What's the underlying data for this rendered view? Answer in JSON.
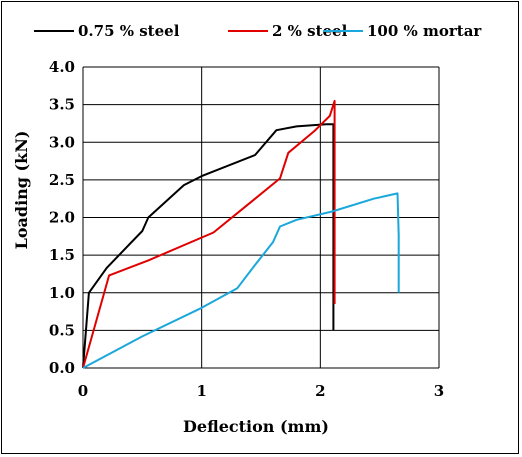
{
  "chart_data": {
    "type": "line",
    "title": "",
    "xlabel": "Deflection (mm)",
    "ylabel": "Loading (kN)",
    "xlim": [
      0,
      3
    ],
    "ylim": [
      0,
      4
    ],
    "xticks": [
      "0",
      "1",
      "2",
      "3"
    ],
    "yticks": [
      "0.0",
      "0.5",
      "1.0",
      "1.5",
      "2.0",
      "2.5",
      "3.0",
      "3.5",
      "4.0"
    ],
    "grid": true,
    "legend_position": "top",
    "series": [
      {
        "name": "0.75 % steel",
        "color": "#000000",
        "x": [
          0.0,
          0.05,
          0.2,
          0.5,
          0.55,
          0.85,
          1.0,
          1.45,
          1.63,
          1.8,
          2.05,
          2.11,
          2.11,
          2.11
        ],
        "y": [
          0.0,
          1.0,
          1.33,
          1.82,
          2.0,
          2.43,
          2.55,
          2.83,
          3.16,
          3.21,
          3.24,
          3.24,
          1.75,
          0.5
        ]
      },
      {
        "name": "2 % steel",
        "color": "#e00000",
        "x": [
          0.0,
          0.22,
          0.55,
          1.1,
          1.45,
          1.66,
          1.73,
          1.95,
          2.08,
          2.12,
          2.12
        ],
        "y": [
          0.0,
          1.23,
          1.43,
          1.8,
          2.25,
          2.52,
          2.86,
          3.15,
          3.35,
          3.55,
          0.85
        ]
      },
      {
        "name": "100 % mortar",
        "color": "#1aa7db",
        "x": [
          0.0,
          0.5,
          1.0,
          1.3,
          1.45,
          1.6,
          1.66,
          1.8,
          2.1,
          2.45,
          2.65,
          2.66,
          2.66
        ],
        "y": [
          0.0,
          0.42,
          0.8,
          1.06,
          1.37,
          1.67,
          1.88,
          1.97,
          2.08,
          2.25,
          2.32,
          1.77,
          1.0
        ]
      }
    ]
  }
}
